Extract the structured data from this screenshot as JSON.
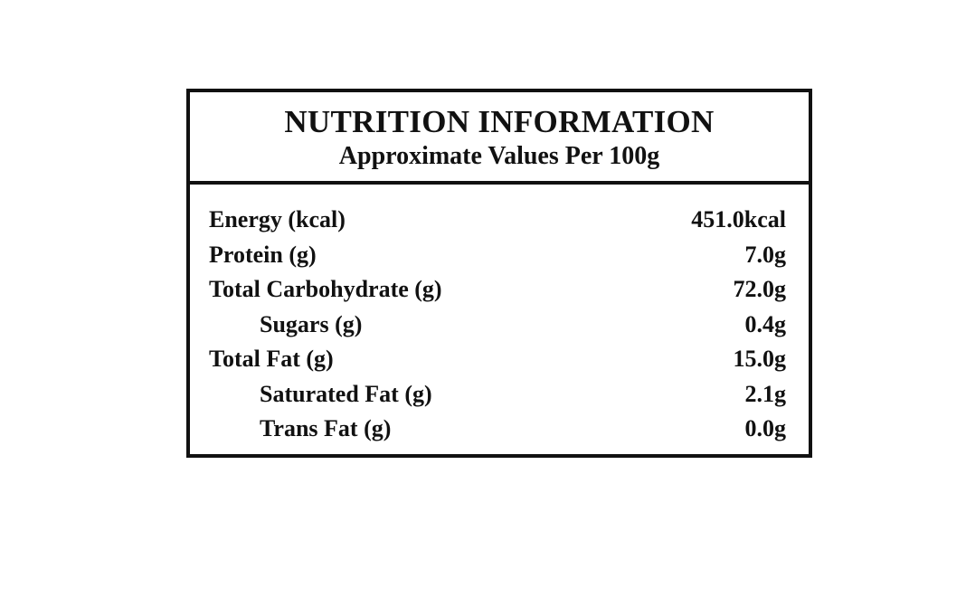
{
  "panel": {
    "title": "NUTRITION INFORMATION",
    "subtitle": "Approximate Values Per 100g"
  },
  "nutrients": [
    {
      "label": "Energy (kcal)",
      "value": "451.0kcal"
    },
    {
      "label": "Protein (g)",
      "value": "7.0g"
    },
    {
      "label": "Total Carbohydrate (g)",
      "value": "72.0g"
    },
    {
      "label": "Sugars (g)",
      "value": "0.4g",
      "indent": true
    },
    {
      "label": "Total Fat (g)",
      "value": "15.0g"
    },
    {
      "label": "Saturated Fat (g)",
      "value": "2.1g",
      "indent": true
    },
    {
      "label": "Trans Fat (g)",
      "value": "0.0g",
      "indent": true
    }
  ],
  "colors": {
    "text": "#111111",
    "border": "#111111",
    "background": "#ffffff"
  }
}
